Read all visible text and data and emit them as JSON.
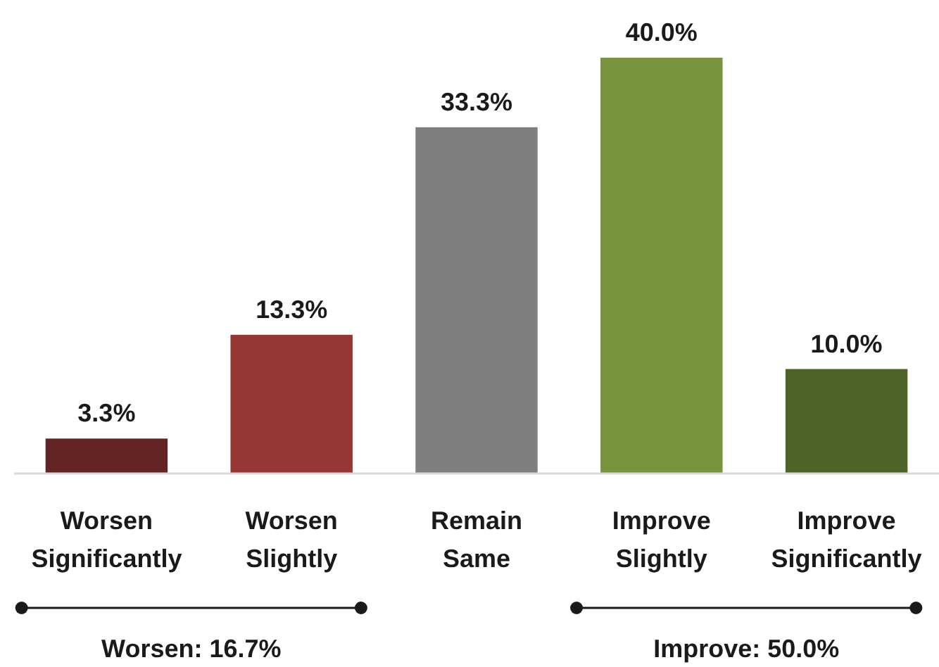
{
  "chart_data": {
    "type": "bar",
    "categories": [
      "Worsen Significantly",
      "Worsen Slightly",
      "Remain Same",
      "Improve Slightly",
      "Improve Significantly"
    ],
    "values": [
      3.3,
      13.3,
      33.3,
      40.0,
      10.0
    ],
    "colors": [
      "#632523",
      "#953735",
      "#7f7f7f",
      "#77933c",
      "#4f6228"
    ],
    "value_labels": [
      "3.3%",
      "13.3%",
      "33.3%",
      "40.0%",
      "10.0%"
    ],
    "annotations": [
      "Worsen: 16.7%",
      "Improve: 50.0%"
    ]
  }
}
